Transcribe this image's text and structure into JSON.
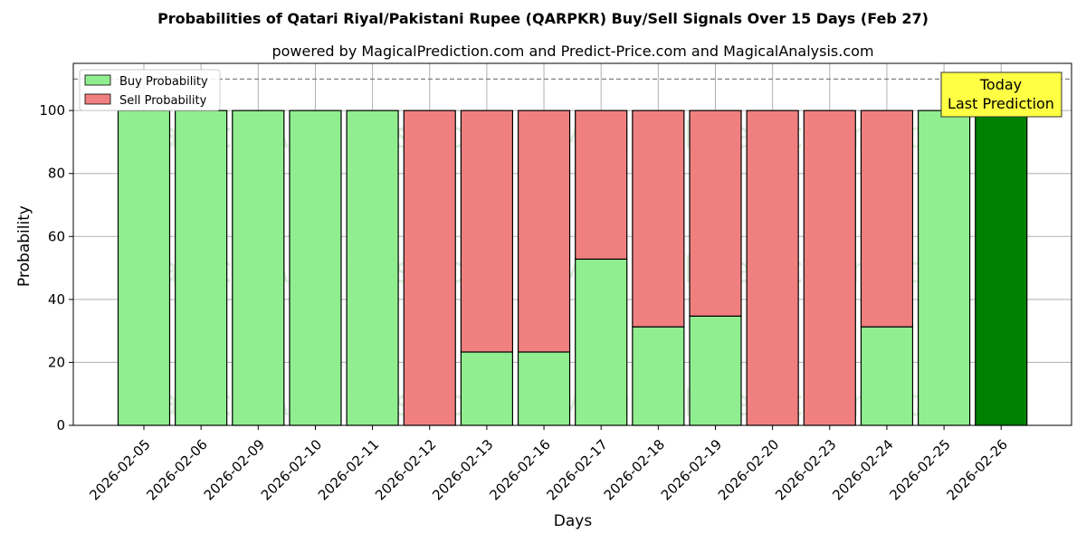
{
  "chart_data": {
    "type": "bar",
    "title": "Probabilities of Qatari Riyal/Pakistani Rupee (QARPKR) Buy/Sell Signals Over 15 Days (Feb 27)",
    "subtitle": "powered by MagicalPrediction.com and Predict-Price.com and MagicalAnalysis.com",
    "xlabel": "Days",
    "ylabel": "Probability",
    "ylim": [
      0,
      115
    ],
    "yticks": [
      0,
      20,
      40,
      60,
      80,
      100
    ],
    "grid": true,
    "stacked": true,
    "reference_line": 110,
    "categories": [
      "2026-02-05",
      "2026-02-06",
      "2026-02-09",
      "2026-02-10",
      "2026-02-11",
      "2026-02-12",
      "2026-02-13",
      "2026-02-16",
      "2026-02-17",
      "2026-02-18",
      "2026-02-19",
      "2026-02-20",
      "2026-02-23",
      "2026-02-24",
      "2026-02-25",
      "2026-02-26"
    ],
    "series": [
      {
        "name": "Buy Probability",
        "color": "#90ee90",
        "values": [
          100,
          100,
          100,
          100,
          100,
          0,
          23.3,
          23.3,
          52.8,
          31.3,
          34.7,
          0,
          0,
          31.3,
          100,
          100
        ]
      },
      {
        "name": "Sell Probability",
        "color": "#f08080",
        "values": [
          0,
          0,
          0,
          0,
          0,
          100,
          76.7,
          76.7,
          47.2,
          68.7,
          65.3,
          100,
          100,
          68.7,
          0,
          0
        ]
      }
    ],
    "highlight": {
      "index": 15,
      "color": "#008000"
    },
    "legend": {
      "position": "top-left",
      "items": [
        "Buy Probability",
        "Sell Probability"
      ]
    },
    "annotation": {
      "lines": [
        "Today",
        "Last Prediction"
      ],
      "color": "#ffff44",
      "position": "top-right"
    },
    "watermarks": [
      "MagicalAnalysis.com",
      "MagicalPrediction.com"
    ]
  }
}
